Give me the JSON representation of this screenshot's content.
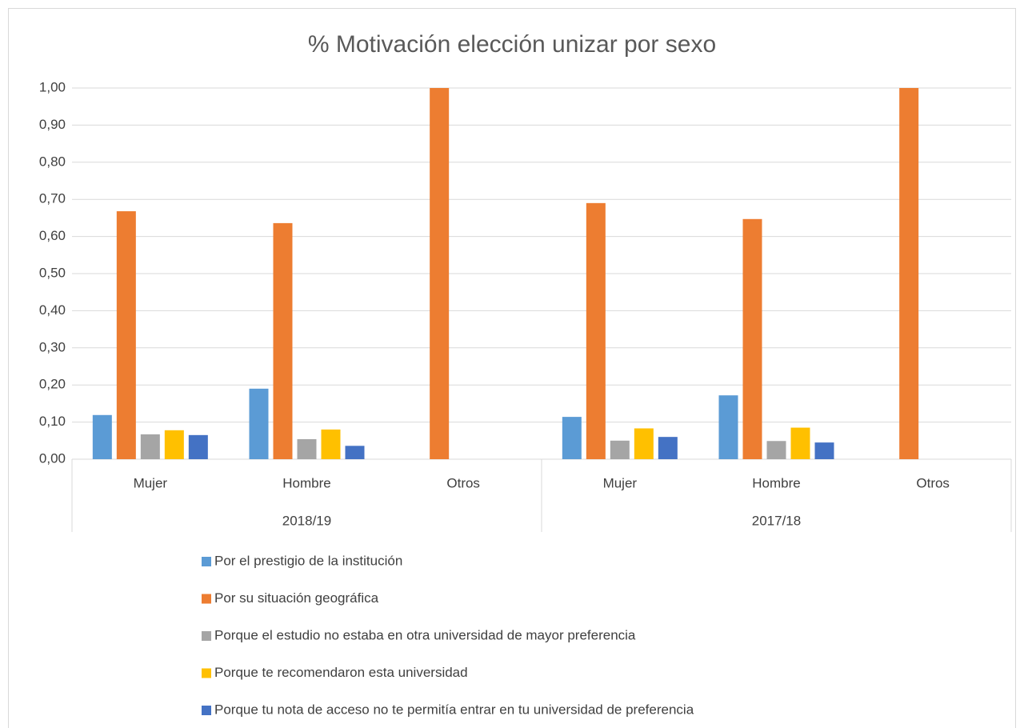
{
  "chart_data": {
    "type": "bar",
    "title": "% Motivación elección unizar por sexo",
    "categories": [
      "Mujer",
      "Hombre",
      "Otros",
      "Mujer",
      "Hombre",
      "Otros"
    ],
    "groups": [
      "2018/19",
      "2017/18"
    ],
    "series": [
      {
        "name": "Por el prestigio de la institución",
        "color": "#5b9bd5",
        "values": [
          0.119,
          0.19,
          0,
          0.114,
          0.172,
          0
        ]
      },
      {
        "name": "Por su situación geográfica",
        "color": "#ed7d31",
        "values": [
          0.668,
          0.636,
          1.0,
          0.69,
          0.647,
          1.0
        ]
      },
      {
        "name": "Porque el estudio no estaba en otra universidad de mayor preferencia",
        "color": "#a5a5a5",
        "values": [
          0.067,
          0.054,
          0,
          0.05,
          0.049,
          0
        ]
      },
      {
        "name": "Porque te recomendaron esta universidad",
        "color": "#ffc000",
        "values": [
          0.078,
          0.08,
          0,
          0.083,
          0.085,
          0
        ]
      },
      {
        "name": "Porque tu nota de acceso no te permitía entrar en tu universidad de preferencia",
        "color": "#4472c4",
        "values": [
          0.065,
          0.036,
          0,
          0.06,
          0.045,
          0
        ]
      }
    ],
    "ylim": [
      0,
      1.0
    ],
    "yticks": [
      {
        "value": 0,
        "label": "0,00"
      },
      {
        "value": 0.1,
        "label": "0,10"
      },
      {
        "value": 0.2,
        "label": "0,20"
      },
      {
        "value": 0.3,
        "label": "0,30"
      },
      {
        "value": 0.4,
        "label": "0,40"
      },
      {
        "value": 0.5,
        "label": "0,50"
      },
      {
        "value": 0.6,
        "label": "0,60"
      },
      {
        "value": 0.7,
        "label": "0,70"
      },
      {
        "value": 0.8,
        "label": "0,80"
      },
      {
        "value": 0.9,
        "label": "0,90"
      },
      {
        "value": 1.0,
        "label": "1,00"
      }
    ],
    "grid": true,
    "legend": "bottom"
  }
}
